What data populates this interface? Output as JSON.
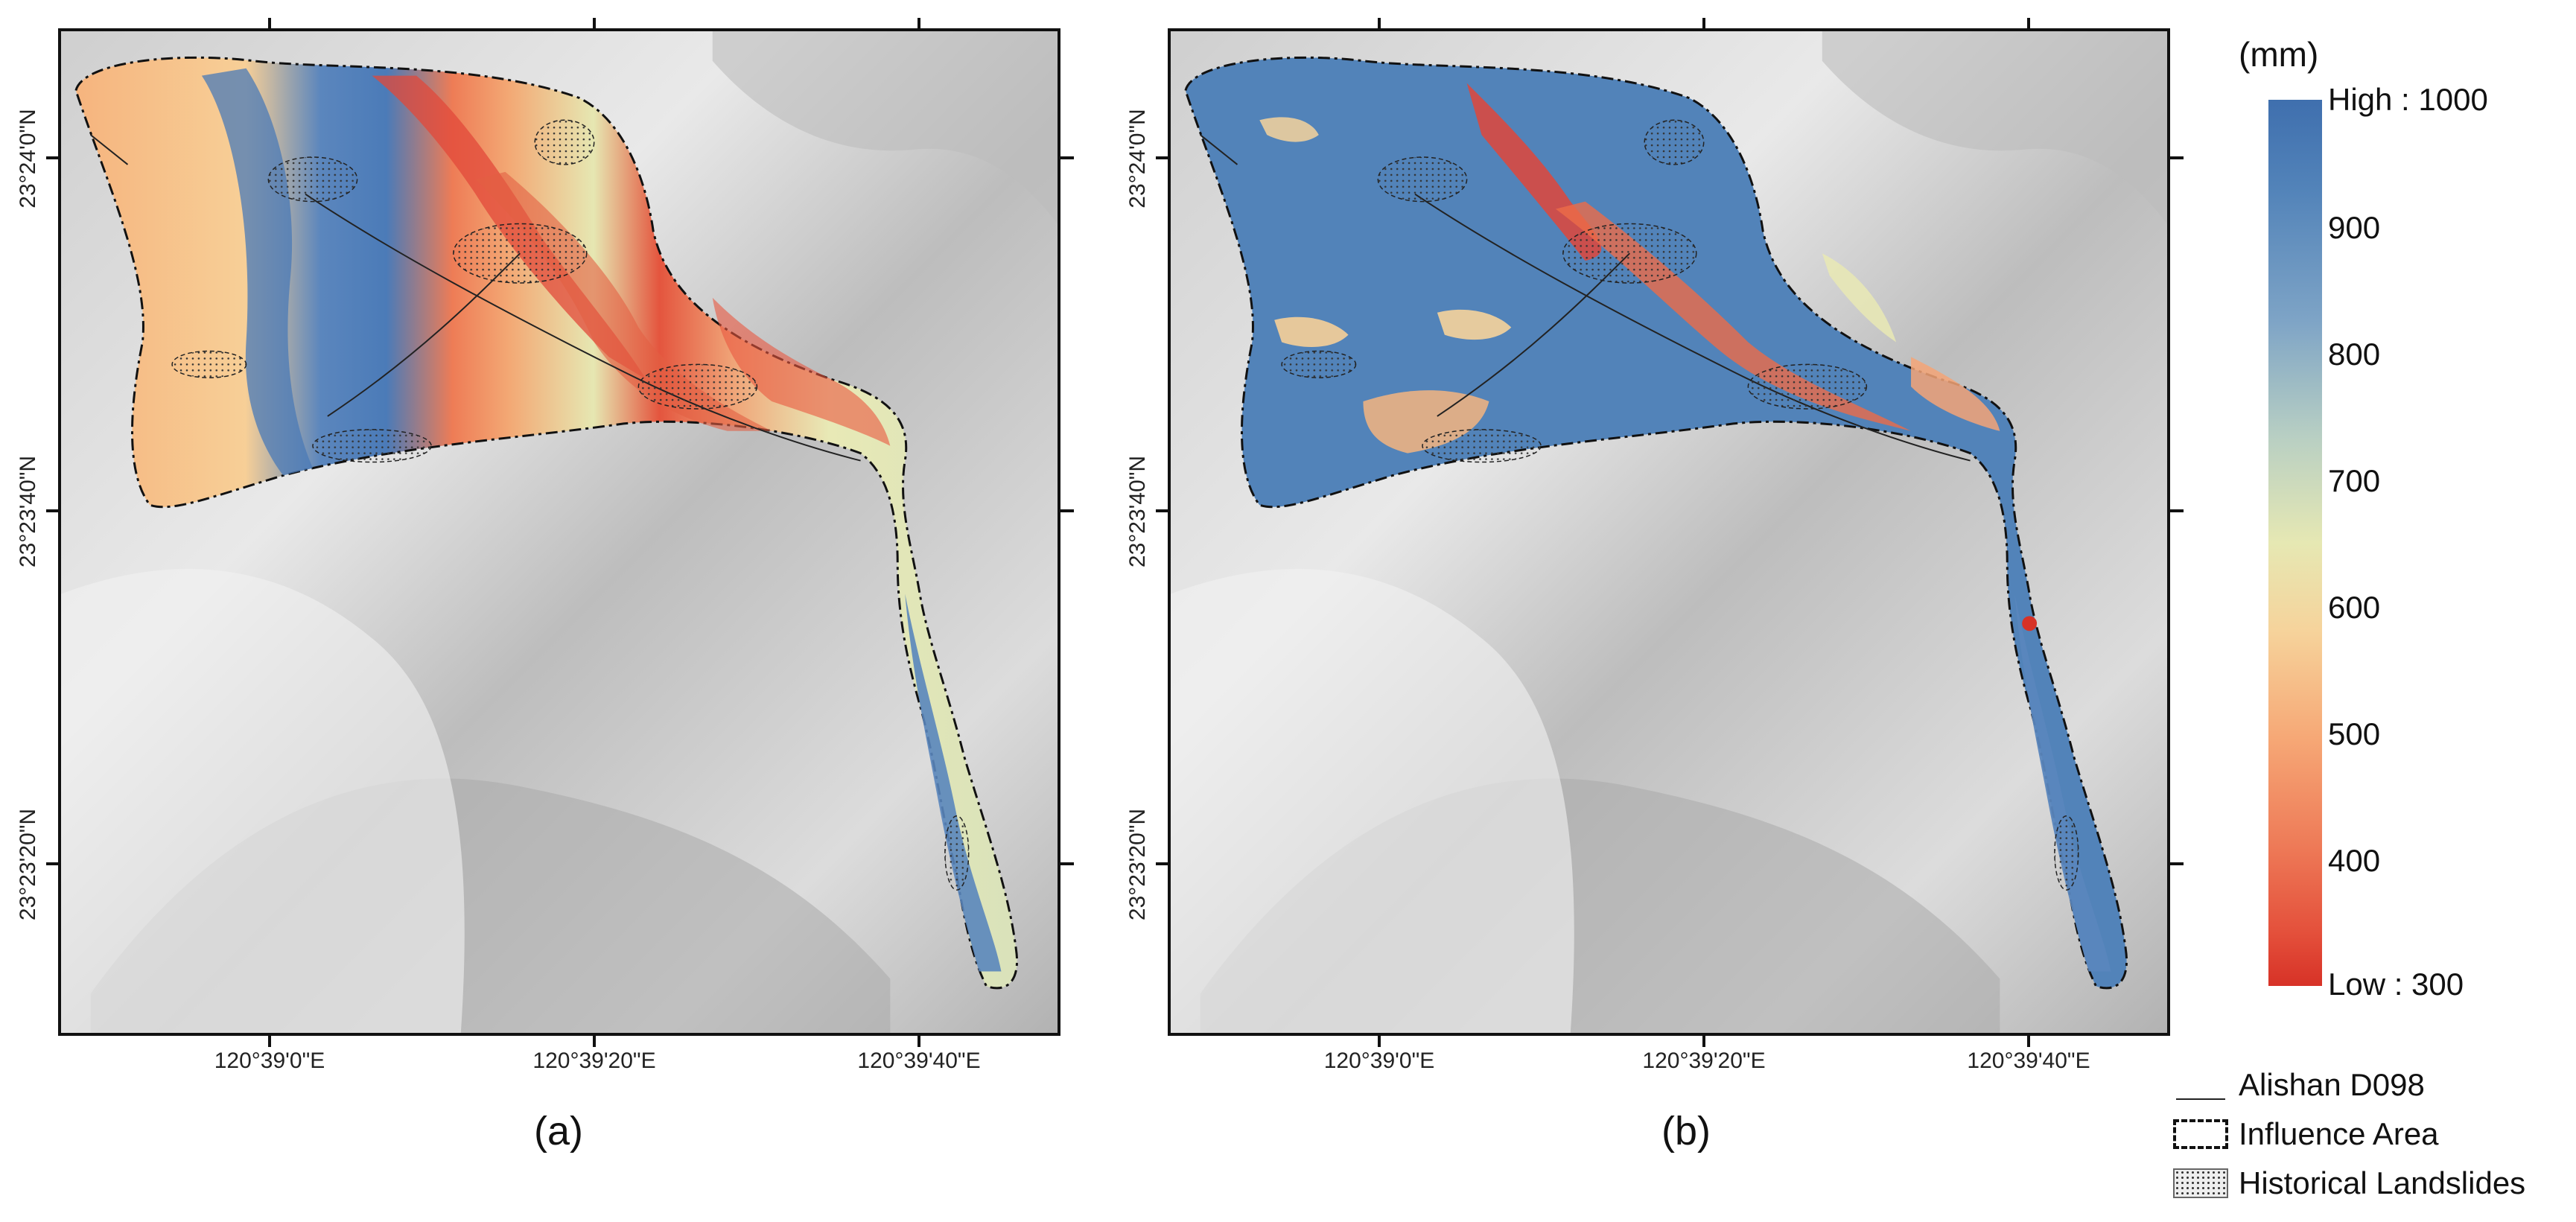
{
  "map": {
    "panels": [
      {
        "letter": "(a)",
        "lon_labels": [
          "120°39'0\"E",
          "120°39'20\"E",
          "120°39'40\"E"
        ],
        "lat_labels": [
          "23°24'0\"N",
          "23°23'40\"N",
          "23°23'20\"N"
        ]
      },
      {
        "letter": "(b)",
        "lon_labels": [
          "120°39'0\"E",
          "120°39'20\"E",
          "120°39'40\"E"
        ],
        "lat_labels": [
          "23°24'0\"N",
          "23°23'40\"N",
          "23°23'20\"N"
        ]
      }
    ]
  },
  "legend": {
    "unit": "(mm)",
    "high_label": "High : 1000",
    "low_label": "Low : 300",
    "ticks": [
      "900",
      "800",
      "700",
      "600",
      "500",
      "400"
    ],
    "items": [
      {
        "label": "Alishan D098",
        "symbol": "line"
      },
      {
        "label": "Influence Area",
        "symbol": "dash"
      },
      {
        "label": "Historical Landslides",
        "symbol": "dots"
      }
    ],
    "colors": {
      "high": "#3f6fae",
      "mid": "#e6e8b3",
      "low": "#d73227"
    }
  }
}
